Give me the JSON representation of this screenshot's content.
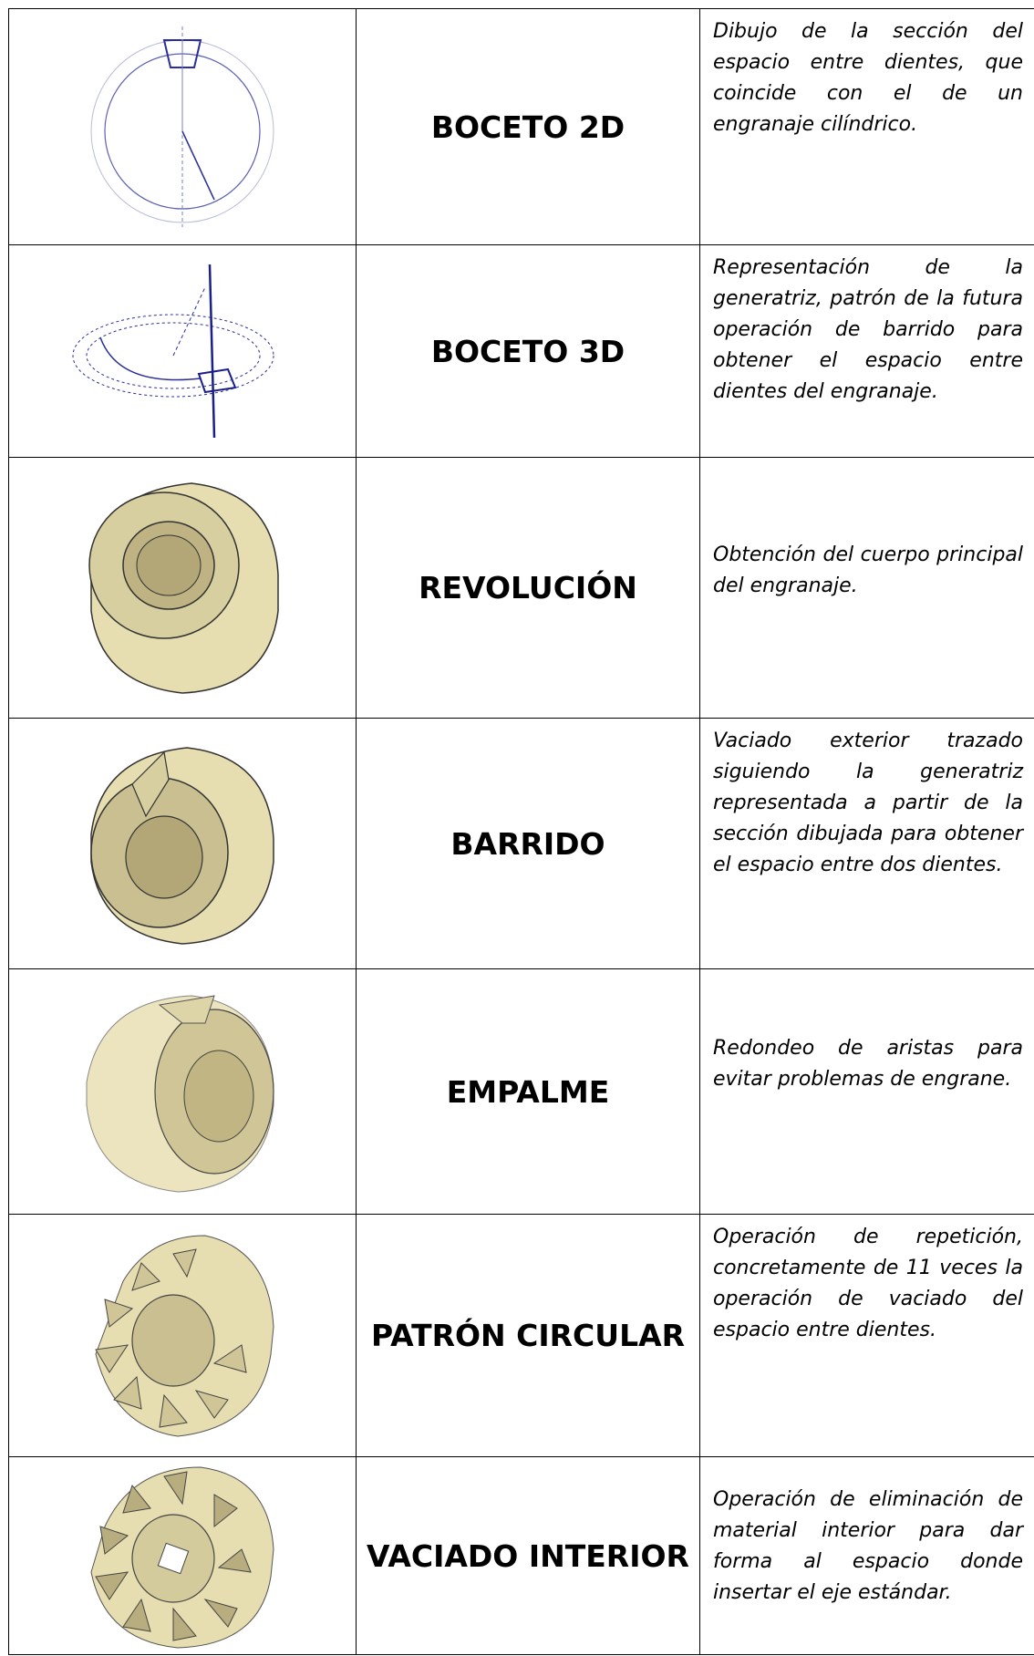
{
  "table": {
    "rows": [
      {
        "title": "BOCETO 2D",
        "description": "Dibujo de la sección del espacio entre dientes, que coincide con el de un engranaje cilíndrico."
      },
      {
        "title": "BOCETO 3D",
        "description": "Representación de la generatriz, patrón de la futura operación de barrido para obtener el espacio entre dientes del engranaje."
      },
      {
        "title": "REVOLUCIÓN",
        "description": "Obtención del cuerpo principal del engranaje."
      },
      {
        "title": "BARRIDO",
        "description": "Vaciado exterior trazado siguiendo la generatriz representada a partir de la sección dibujada para obtener el espacio entre dos dientes."
      },
      {
        "title": "EMPALME",
        "description": "Redondeo de aristas para evitar problemas de engrane."
      },
      {
        "title": "PATRÓN CIRCULAR",
        "description": "Operación de repetición, concretamente de 11 veces la operación de vaciado del espacio entre dientes."
      },
      {
        "title": "VACIADO INTERIOR",
        "description": "Operación de eliminación de material interior para dar forma al espacio donde insertar el eje estándar."
      }
    ]
  }
}
